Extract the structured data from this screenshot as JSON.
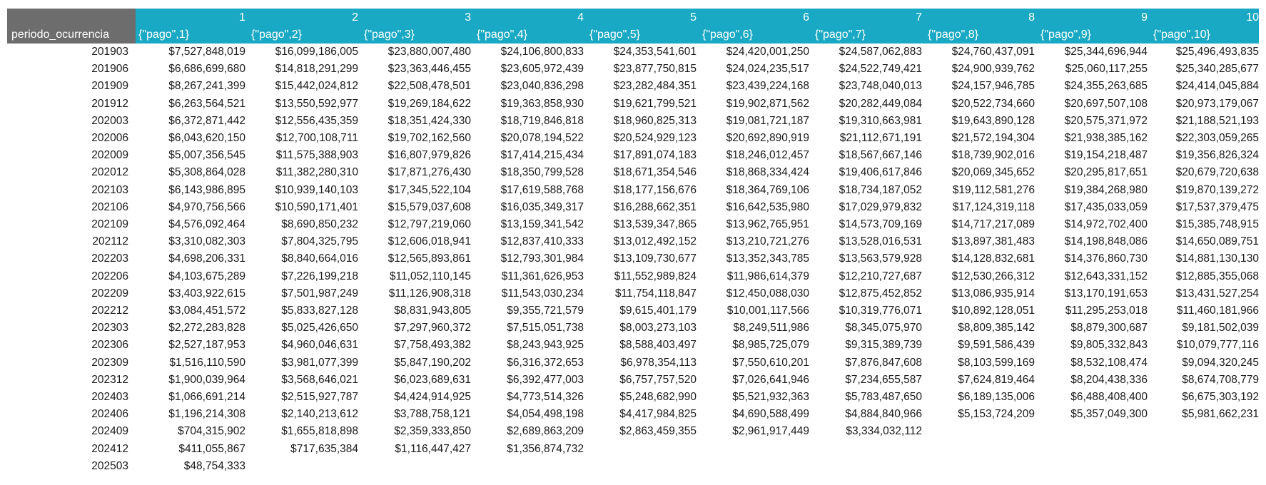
{
  "header": {
    "row_label": "periodo_ocurrencia",
    "columns": [
      {
        "number": "1",
        "label": "{\"pago\",1}"
      },
      {
        "number": "2",
        "label": "{\"pago\",2}"
      },
      {
        "number": "3",
        "label": "{\"pago\",3}"
      },
      {
        "number": "4",
        "label": "{\"pago\",4}"
      },
      {
        "number": "5",
        "label": "{\"pago\",5}"
      },
      {
        "number": "6",
        "label": "{\"pago\",6}"
      },
      {
        "number": "7",
        "label": "{\"pago\",7}"
      },
      {
        "number": "8",
        "label": "{\"pago\",8}"
      },
      {
        "number": "9",
        "label": "{\"pago\",9}"
      },
      {
        "number": "10",
        "label": "{\"pago\",10}"
      }
    ]
  },
  "rows": [
    {
      "period": "201903",
      "values": [
        "$7,527,848,019",
        "$16,099,186,005",
        "$23,880,007,480",
        "$24,106,800,833",
        "$24,353,541,601",
        "$24,420,001,250",
        "$24,587,062,883",
        "$24,760,437,091",
        "$25,344,696,944",
        "$25,496,493,835"
      ]
    },
    {
      "period": "201906",
      "values": [
        "$6,686,699,680",
        "$14,818,291,299",
        "$23,363,446,455",
        "$23,605,972,439",
        "$23,877,750,815",
        "$24,024,235,517",
        "$24,522,749,421",
        "$24,900,939,762",
        "$25,060,117,255",
        "$25,340,285,677"
      ]
    },
    {
      "period": "201909",
      "values": [
        "$8,267,241,399",
        "$15,442,024,812",
        "$22,508,478,501",
        "$23,040,836,298",
        "$23,282,484,351",
        "$23,439,224,168",
        "$23,748,040,013",
        "$24,157,946,785",
        "$24,355,263,685",
        "$24,414,045,884"
      ]
    },
    {
      "period": "201912",
      "values": [
        "$6,263,564,521",
        "$13,550,592,977",
        "$19,269,184,622",
        "$19,363,858,930",
        "$19,621,799,521",
        "$19,902,871,562",
        "$20,282,449,084",
        "$20,522,734,660",
        "$20,697,507,108",
        "$20,973,179,067"
      ]
    },
    {
      "period": "202003",
      "values": [
        "$6,372,871,442",
        "$12,556,435,359",
        "$18,351,424,330",
        "$18,719,846,818",
        "$18,960,825,313",
        "$19,081,721,187",
        "$19,310,663,981",
        "$19,643,890,128",
        "$20,575,371,972",
        "$21,188,521,193"
      ]
    },
    {
      "period": "202006",
      "values": [
        "$6,043,620,150",
        "$12,700,108,711",
        "$19,702,162,560",
        "$20,078,194,522",
        "$20,524,929,123",
        "$20,692,890,919",
        "$21,112,671,191",
        "$21,572,194,304",
        "$21,938,385,162",
        "$22,303,059,265"
      ]
    },
    {
      "period": "202009",
      "values": [
        "$5,007,356,545",
        "$11,575,388,903",
        "$16,807,979,826",
        "$17,414,215,434",
        "$17,891,074,183",
        "$18,246,012,457",
        "$18,567,667,146",
        "$18,739,902,016",
        "$19,154,218,487",
        "$19,356,826,324"
      ]
    },
    {
      "period": "202012",
      "values": [
        "$5,308,864,028",
        "$11,382,280,310",
        "$17,871,276,430",
        "$18,350,799,528",
        "$18,671,354,546",
        "$18,868,334,424",
        "$19,406,617,846",
        "$20,069,345,652",
        "$20,295,817,651",
        "$20,679,720,638"
      ]
    },
    {
      "period": "202103",
      "values": [
        "$6,143,986,895",
        "$10,939,140,103",
        "$17,345,522,104",
        "$17,619,588,768",
        "$18,177,156,676",
        "$18,364,769,106",
        "$18,734,187,052",
        "$19,112,581,276",
        "$19,384,268,980",
        "$19,870,139,272"
      ]
    },
    {
      "period": "202106",
      "values": [
        "$4,970,756,566",
        "$10,590,171,401",
        "$15,579,037,608",
        "$16,035,349,317",
        "$16,288,662,351",
        "$16,642,535,980",
        "$17,029,979,832",
        "$17,124,319,118",
        "$17,435,033,059",
        "$17,537,379,475"
      ]
    },
    {
      "period": "202109",
      "values": [
        "$4,576,092,464",
        "$8,690,850,232",
        "$12,797,219,060",
        "$13,159,341,542",
        "$13,539,347,865",
        "$13,962,765,951",
        "$14,573,709,169",
        "$14,717,217,089",
        "$14,972,702,400",
        "$15,385,748,915"
      ]
    },
    {
      "period": "202112",
      "values": [
        "$3,310,082,303",
        "$7,804,325,795",
        "$12,606,018,941",
        "$12,837,410,333",
        "$13,012,492,152",
        "$13,210,721,276",
        "$13,528,016,531",
        "$13,897,381,483",
        "$14,198,848,086",
        "$14,650,089,751"
      ]
    },
    {
      "period": "202203",
      "values": [
        "$4,698,206,331",
        "$8,840,664,016",
        "$12,565,893,861",
        "$12,793,301,984",
        "$13,109,730,677",
        "$13,352,343,785",
        "$13,563,579,928",
        "$14,128,832,681",
        "$14,376,860,730",
        "$14,881,130,130"
      ]
    },
    {
      "period": "202206",
      "values": [
        "$4,103,675,289",
        "$7,226,199,218",
        "$11,052,110,145",
        "$11,361,626,953",
        "$11,552,989,824",
        "$11,986,614,379",
        "$12,210,727,687",
        "$12,530,266,312",
        "$12,643,331,152",
        "$12,885,355,068"
      ]
    },
    {
      "period": "202209",
      "values": [
        "$3,403,922,615",
        "$7,501,987,249",
        "$11,126,908,318",
        "$11,543,030,234",
        "$11,754,118,847",
        "$12,450,088,030",
        "$12,875,452,852",
        "$13,086,935,914",
        "$13,170,191,653",
        "$13,431,527,254"
      ]
    },
    {
      "period": "202212",
      "values": [
        "$3,084,451,572",
        "$5,833,827,128",
        "$8,831,943,805",
        "$9,355,721,579",
        "$9,615,401,179",
        "$10,001,117,566",
        "$10,319,776,071",
        "$10,892,128,051",
        "$11,295,253,018",
        "$11,460,181,966"
      ]
    },
    {
      "period": "202303",
      "values": [
        "$2,272,283,828",
        "$5,025,426,650",
        "$7,297,960,372",
        "$7,515,051,738",
        "$8,003,273,103",
        "$8,249,511,986",
        "$8,345,075,970",
        "$8,809,385,142",
        "$8,879,300,687",
        "$9,181,502,039"
      ]
    },
    {
      "period": "202306",
      "values": [
        "$2,527,187,953",
        "$4,960,046,631",
        "$7,758,493,382",
        "$8,243,943,925",
        "$8,588,403,497",
        "$8,985,725,079",
        "$9,315,389,739",
        "$9,591,586,439",
        "$9,805,332,843",
        "$10,079,777,116"
      ]
    },
    {
      "period": "202309",
      "values": [
        "$1,516,110,590",
        "$3,981,077,399",
        "$5,847,190,202",
        "$6,316,372,653",
        "$6,978,354,113",
        "$7,550,610,201",
        "$7,876,847,608",
        "$8,103,599,169",
        "$8,532,108,474",
        "$9,094,320,245"
      ]
    },
    {
      "period": "202312",
      "values": [
        "$1,900,039,964",
        "$3,568,646,021",
        "$6,023,689,631",
        "$6,392,477,003",
        "$6,757,757,520",
        "$7,026,641,946",
        "$7,234,655,587",
        "$7,624,819,464",
        "$8,204,438,336",
        "$8,674,708,779"
      ]
    },
    {
      "period": "202403",
      "values": [
        "$1,066,691,214",
        "$2,515,927,787",
        "$4,424,914,925",
        "$4,773,514,326",
        "$5,248,682,990",
        "$5,521,932,363",
        "$5,783,487,650",
        "$6,189,135,006",
        "$6,488,408,400",
        "$6,675,303,192"
      ]
    },
    {
      "period": "202406",
      "values": [
        "$1,196,214,308",
        "$2,140,213,612",
        "$3,788,758,121",
        "$4,054,498,198",
        "$4,417,984,825",
        "$4,690,588,499",
        "$4,884,840,966",
        "$5,153,724,209",
        "$5,357,049,300",
        "$5,981,662,231"
      ]
    },
    {
      "period": "202409",
      "values": [
        "$704,315,902",
        "$1,655,818,898",
        "$2,359,333,850",
        "$2,689,863,209",
        "$2,863,459,355",
        "$2,961,917,449",
        "$3,334,032,112",
        "",
        "",
        ""
      ]
    },
    {
      "period": "202412",
      "values": [
        "$411,055,867",
        "$717,635,384",
        "$1,116,447,427",
        "$1,356,874,732",
        "",
        "",
        "",
        "",
        "",
        ""
      ]
    },
    {
      "period": "202503",
      "values": [
        "$48,754,333",
        "",
        "",
        "",
        "",
        "",
        "",
        "",
        "",
        ""
      ]
    }
  ]
}
